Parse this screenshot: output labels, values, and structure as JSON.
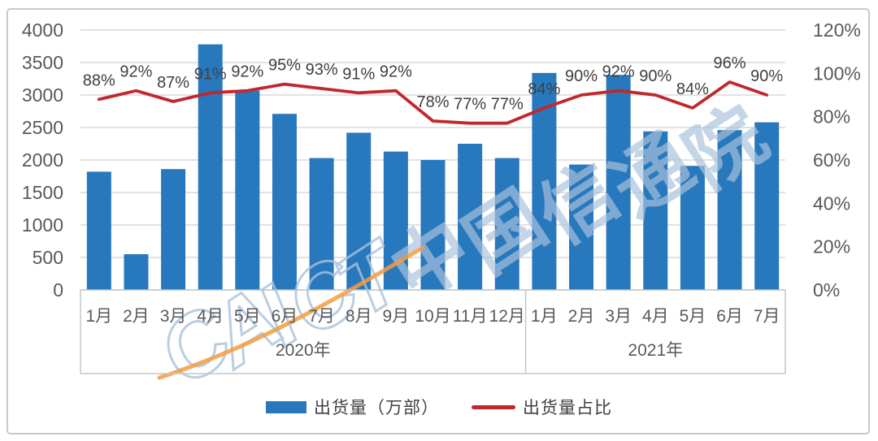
{
  "chart_data": {
    "type": "bar",
    "categories": [
      "1月",
      "2月",
      "3月",
      "4月",
      "5月",
      "6月",
      "7月",
      "8月",
      "9月",
      "10月",
      "11月",
      "12月",
      "1月",
      "2月",
      "3月",
      "4月",
      "5月",
      "6月",
      "7月"
    ],
    "category_groups": [
      {
        "label": "2020年",
        "count": 12
      },
      {
        "label": "2021年",
        "count": 7
      }
    ],
    "series": [
      {
        "name": "出货量（万部）",
        "type": "bar",
        "axis": "left",
        "values": [
          1820,
          550,
          1860,
          3780,
          3070,
          2710,
          2030,
          2420,
          2130,
          2000,
          2250,
          2030,
          3340,
          1930,
          3310,
          2440,
          1910,
          2460,
          2580
        ]
      },
      {
        "name": "出货量占比",
        "type": "line",
        "axis": "right",
        "values": [
          88,
          92,
          87,
          91,
          92,
          95,
          93,
          91,
          92,
          78,
          77,
          77,
          84,
          90,
          92,
          90,
          84,
          96,
          90
        ],
        "point_labels": [
          "88%",
          "92%",
          "87%",
          "91%",
          "92%",
          "95%",
          "93%",
          "91%",
          "92%",
          "78%",
          "77%",
          "77%",
          "84%",
          "90%",
          "92%",
          "90%",
          "84%",
          "96%",
          "90%"
        ]
      }
    ],
    "left_axis": {
      "min": 0,
      "max": 4000,
      "step": 500,
      "tick_labels": [
        "4000",
        "3500",
        "3000",
        "2500",
        "2000",
        "1500",
        "1000",
        "500",
        "0"
      ]
    },
    "right_axis": {
      "min": 0,
      "max": 120,
      "step": 20,
      "tick_labels": [
        "120%",
        "100%",
        "80%",
        "60%",
        "40%",
        "20%",
        "0%"
      ]
    },
    "grid": true,
    "legend_position": "bottom"
  },
  "colors": {
    "bar": "#2878BD",
    "line": "#C1272D",
    "grid": "#D9D9D9",
    "baseline": "#BFBFBF",
    "box_line": "#C6C6C6",
    "axis_text": "#595959",
    "data_label": "#3F3F3F",
    "frame_border": "#C9C9C9",
    "watermark_blue": "#A9C2DC",
    "watermark_orange": "#F39C3F"
  },
  "watermark": {
    "text": "CAICT中国信通院"
  }
}
